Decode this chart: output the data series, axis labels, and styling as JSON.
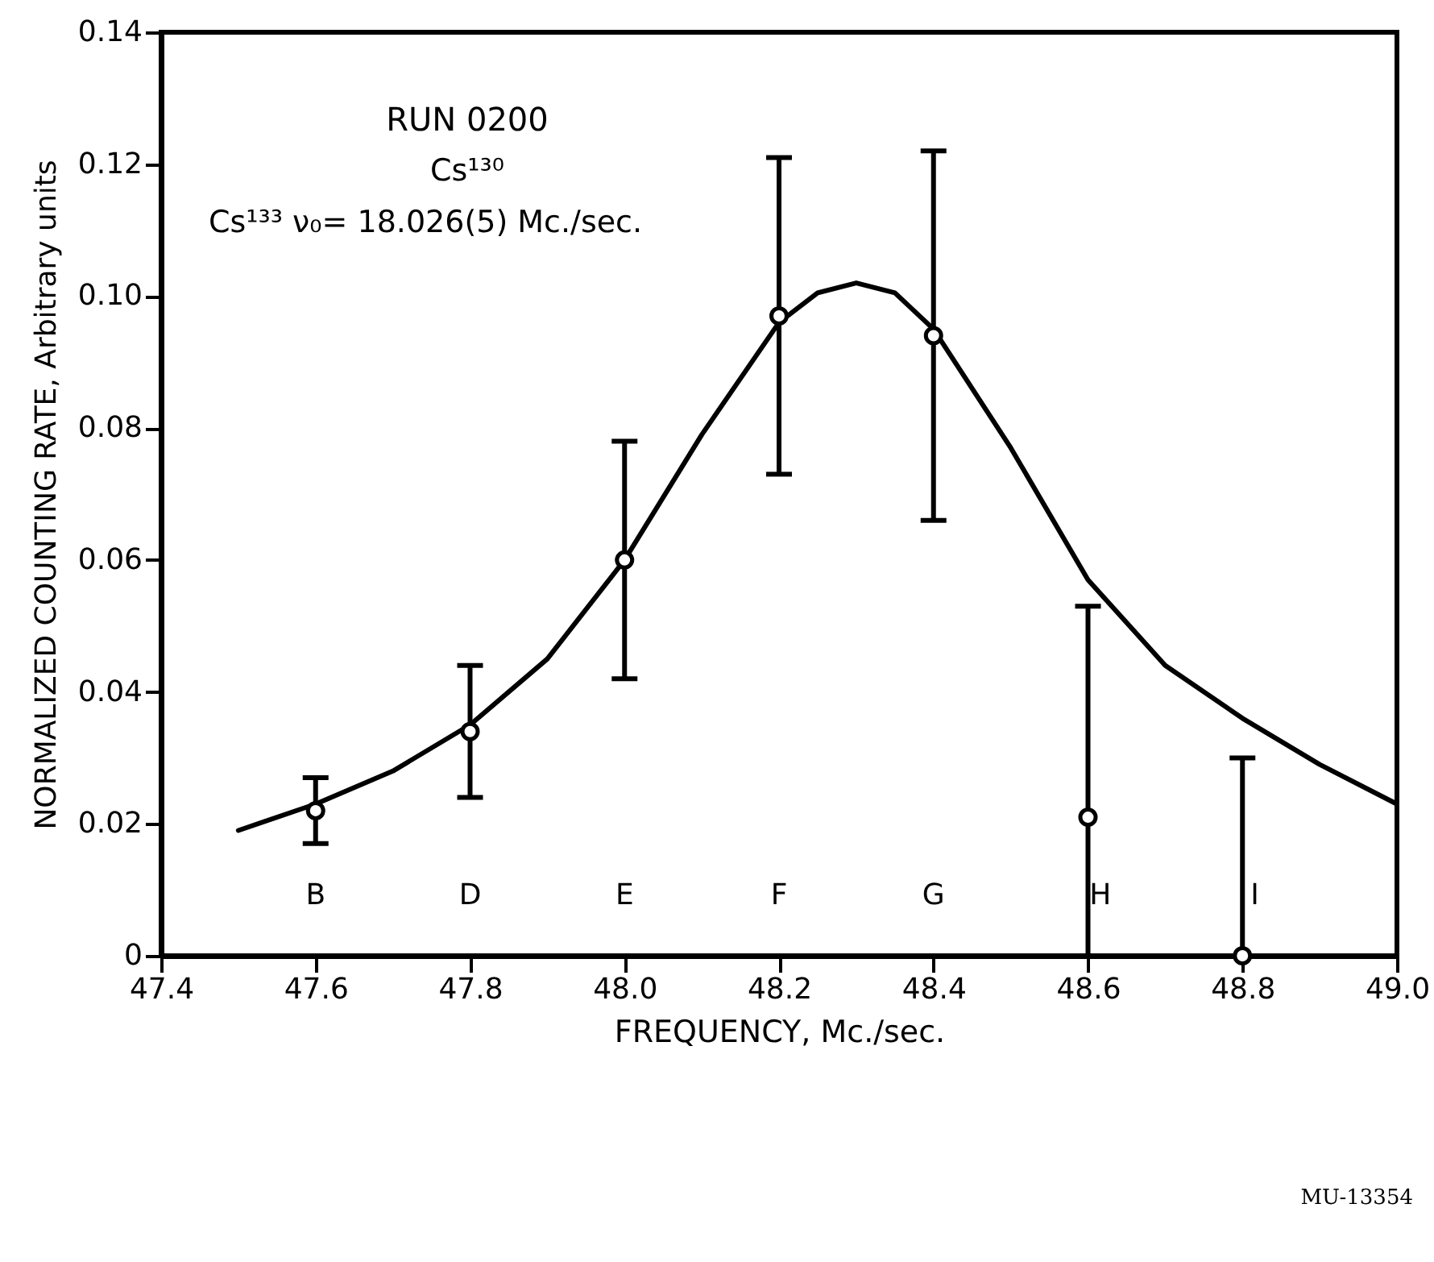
{
  "chart_data": {
    "type": "scatter",
    "xlabel": "FREQUENCY,  Mc./sec.",
    "ylabel": "NORMALIZED COUNTING RATE, Arbitrary units",
    "xlim": [
      47.4,
      49.0
    ],
    "xticks": [
      47.4,
      47.6,
      47.8,
      {
        "value": 48.0,
        "label": "48.0"
      },
      48.2,
      48.4,
      48.6,
      48.8,
      {
        "value": 49.0,
        "label": "49.0"
      }
    ],
    "ylim": [
      0,
      0.14
    ],
    "yticks": [
      {
        "value": 0,
        "label": "0"
      },
      0.02,
      0.04,
      0.06,
      0.08,
      {
        "value": 0.1,
        "label": "0.10"
      },
      0.12,
      0.14
    ],
    "grid": false,
    "series": [
      {
        "type": "line",
        "marker": "none",
        "color": "#000000",
        "x": [
          47.5,
          47.6,
          47.7,
          47.8,
          47.9,
          48.0,
          48.1,
          48.2,
          48.25,
          48.3,
          48.35,
          48.4,
          48.5,
          48.6,
          48.7,
          48.8,
          48.9,
          49.0
        ],
        "values": [
          0.019,
          0.023,
          0.028,
          0.035,
          0.045,
          0.06,
          0.079,
          0.096,
          0.1005,
          0.102,
          0.1005,
          0.095,
          0.077,
          0.057,
          0.044,
          0.036,
          0.029,
          0.023
        ]
      },
      {
        "marker": "circle",
        "color": "#000000",
        "x": [
          47.6,
          47.8,
          48.0,
          48.2,
          48.4,
          48.6,
          48.8
        ],
        "values": [
          0.022,
          0.034,
          0.06,
          0.097,
          0.094,
          0.021,
          0.0
        ],
        "errors": [
          [
            0.017,
            0.027
          ],
          [
            0.024,
            0.044
          ],
          [
            0.042,
            0.078
          ],
          [
            0.073,
            0.121
          ],
          [
            0.066,
            0.122
          ],
          [
            0.0,
            0.053
          ],
          [
            0.0,
            0.03
          ]
        ]
      }
    ],
    "annotations": [
      "RUN   0200",
      "Cs¹³⁰",
      "Cs¹³³ ν₀= 18.026(5) Mc./sec.",
      "MU-13354",
      "B",
      "D",
      "E",
      "F",
      "G",
      "H",
      "I"
    ]
  }
}
